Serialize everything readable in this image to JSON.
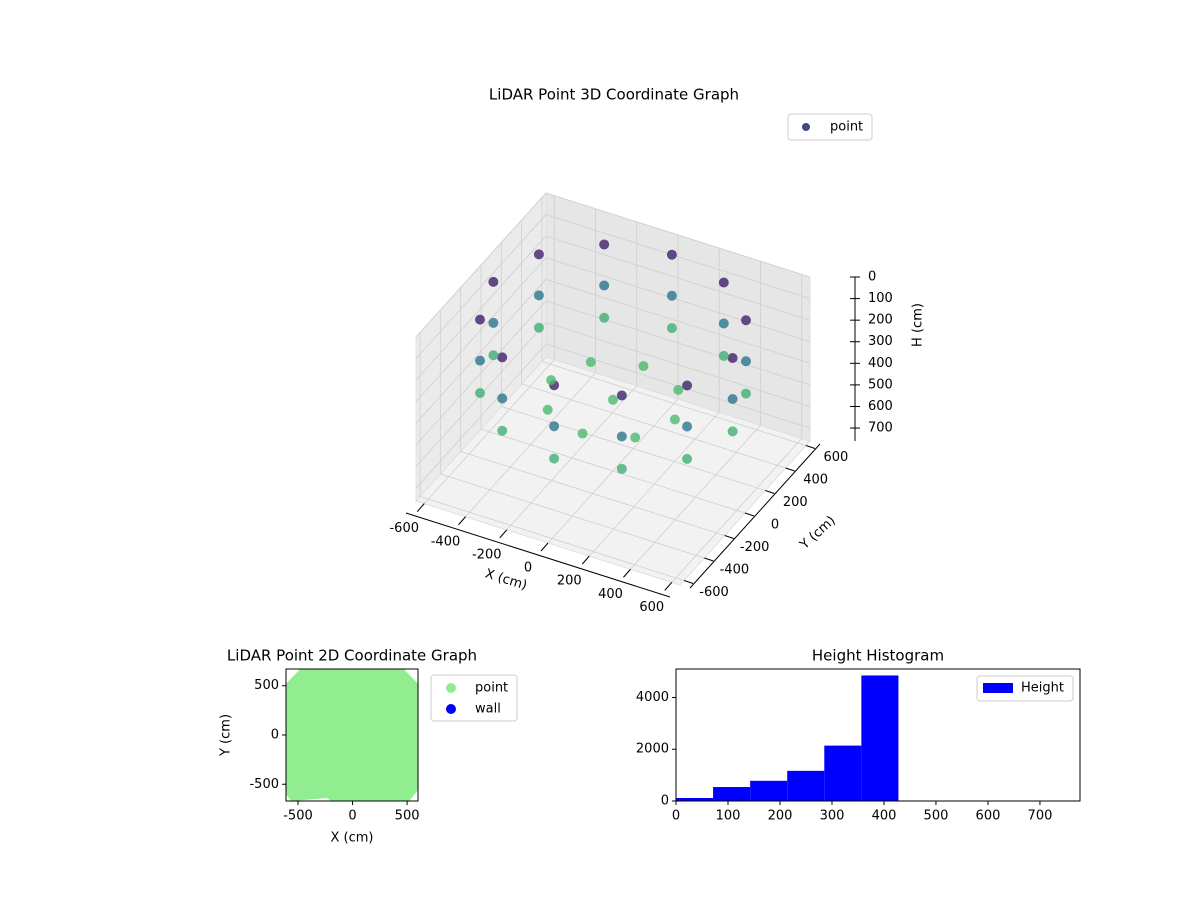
{
  "chart_data": [
    {
      "type": "scatter3d",
      "title": "LiDAR Point 3D Coordinate Graph",
      "xlabel": "X (cm)",
      "ylabel": "Y (cm)",
      "zlabel": "H (cm)",
      "xlim": [
        -640,
        640
      ],
      "ylim": [
        -640,
        640
      ],
      "zlim": [
        0,
        760
      ],
      "z_inverted": true,
      "xticks": [
        -600,
        -400,
        -200,
        0,
        200,
        400,
        600
      ],
      "yticks": [
        -600,
        -400,
        -200,
        0,
        200,
        400,
        600
      ],
      "zticks": [
        0,
        100,
        200,
        300,
        400,
        500,
        600,
        700
      ],
      "colormap": "viridis",
      "legend_loc": "upper right",
      "series": [
        {
          "name": "point",
          "color": "#3e4a89",
          "x": [
            580,
            502,
            290,
            0,
            -290,
            -502,
            -580,
            -502,
            -290,
            0,
            290,
            502,
            580,
            502,
            290,
            0,
            -290,
            -502,
            -580,
            -502,
            -290,
            0,
            290,
            502,
            580,
            502,
            290,
            0,
            -290,
            -502,
            -580,
            -502,
            -290,
            0,
            290,
            502,
            300,
            212,
            0,
            -212,
            -300,
            -212,
            0,
            212,
            0
          ],
          "y": [
            0,
            290,
            502,
            580,
            502,
            290,
            0,
            -290,
            -502,
            -580,
            -502,
            -290,
            0,
            290,
            502,
            580,
            502,
            290,
            0,
            -290,
            -502,
            -580,
            -502,
            -290,
            0,
            290,
            502,
            580,
            502,
            290,
            0,
            -290,
            -502,
            -580,
            -502,
            -290,
            0,
            212,
            300,
            212,
            0,
            -212,
            -300,
            -212,
            0
          ],
          "z": [
            60,
            60,
            60,
            60,
            60,
            60,
            60,
            60,
            60,
            60,
            60,
            60,
            250,
            250,
            250,
            250,
            250,
            250,
            250,
            250,
            250,
            250,
            250,
            250,
            400,
            400,
            400,
            400,
            400,
            400,
            400,
            400,
            400,
            400,
            400,
            400,
            430,
            430,
            430,
            430,
            430,
            430,
            430,
            430,
            430
          ]
        }
      ]
    },
    {
      "type": "scatter",
      "title": "LiDAR Point 2D Coordinate Graph",
      "xlabel": "X (cm)",
      "ylabel": "Y (cm)",
      "xlim": [
        -610,
        600
      ],
      "ylim": [
        -670,
        670
      ],
      "xticks": [
        -500,
        0,
        500
      ],
      "yticks": [
        -500,
        0,
        500
      ],
      "legend_loc": "outside upper right",
      "series": [
        {
          "name": "point",
          "color": "#90ee90",
          "x": [
            -480,
            470,
            600,
            600,
            520,
            -200,
            -230,
            -560,
            -610,
            -610
          ],
          "y": [
            670,
            670,
            520,
            -560,
            -670,
            -670,
            -640,
            -670,
            -600,
            520
          ]
        },
        {
          "name": "wall",
          "color": "#0000ff",
          "x": [],
          "y": []
        }
      ]
    },
    {
      "type": "histogram",
      "title": "Height Histogram",
      "bins": [
        0,
        71.3,
        142.6,
        213.9,
        285.2,
        356.5,
        427.8,
        499.1,
        570.4,
        641.7,
        713
      ],
      "series": [
        {
          "name": "Height",
          "color": "#0000ff",
          "values": [
            116,
            540,
            780,
            1165,
            2140,
            4850,
            0,
            0,
            0,
            0
          ]
        }
      ],
      "xlim": [
        0,
        777
      ],
      "ylim": [
        0,
        5100
      ],
      "xticks": [
        0,
        100,
        200,
        300,
        400,
        500,
        600,
        700
      ],
      "yticks": [
        0,
        2000,
        4000
      ],
      "legend_loc": "upper right"
    }
  ]
}
